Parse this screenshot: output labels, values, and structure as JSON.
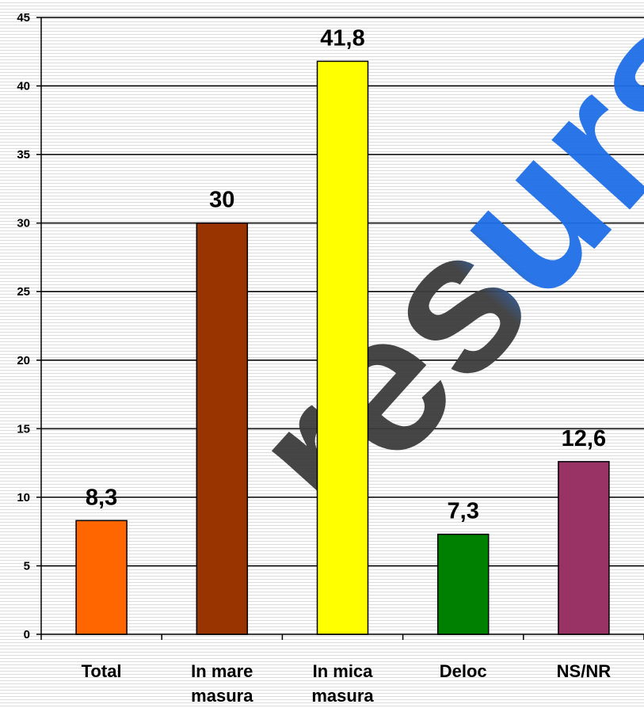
{
  "chart_data": {
    "type": "bar",
    "categories": [
      "Total",
      "In mare masura",
      "In mica masura",
      "Deloc",
      "NS/NR"
    ],
    "category_lines": [
      [
        "Total"
      ],
      [
        "In mare",
        "masura"
      ],
      [
        "In mica",
        "masura"
      ],
      [
        "Deloc"
      ],
      [
        "NS/NR"
      ]
    ],
    "values": [
      8.3,
      30,
      41.8,
      7.3,
      12.6
    ],
    "data_labels": [
      "8,3",
      "30",
      "41,8",
      "7,3",
      "12,6"
    ],
    "bar_colors": [
      "#ff6600",
      "#993300",
      "#ffff00",
      "#008000",
      "#993366"
    ],
    "yticks": [
      "0",
      "5",
      "10",
      "15",
      "20",
      "25",
      "30",
      "35",
      "40",
      "45"
    ],
    "ylim": [
      0,
      45
    ],
    "grid": true,
    "title": "",
    "xlabel": "",
    "ylabel": ""
  },
  "watermark": {
    "text": "resurse",
    "colors": [
      "#3c3c3c",
      "#1e6fe8"
    ]
  }
}
